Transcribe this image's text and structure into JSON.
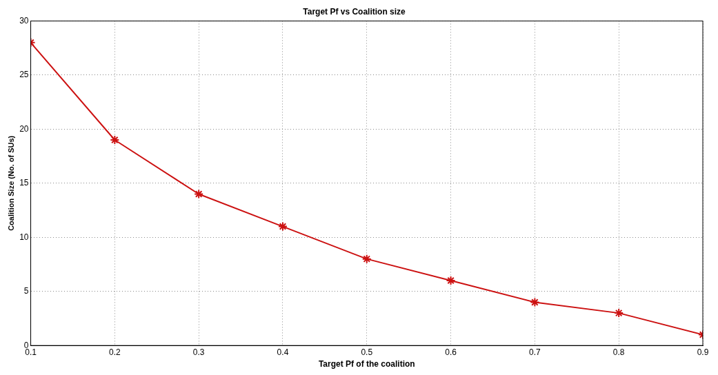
{
  "chart_data": {
    "type": "line",
    "title": "Target Pf vs Coalition size",
    "xlabel": "Target Pf of the coalition",
    "ylabel": "Coalition Size (No. of SUs)",
    "x": [
      0.1,
      0.2,
      0.3,
      0.4,
      0.5,
      0.6,
      0.7,
      0.8,
      0.9
    ],
    "series": [
      {
        "color": "#cc1111",
        "values": [
          28,
          19,
          14,
          11,
          8,
          6,
          4,
          3,
          1
        ]
      }
    ],
    "xlim": [
      0.1,
      0.9
    ],
    "xticks": [
      0.1,
      0.2,
      0.3,
      0.4,
      0.5,
      0.6,
      0.7,
      0.8,
      0.9
    ],
    "ylim": [
      0,
      30
    ],
    "yticks": [
      0,
      5,
      10,
      15,
      20,
      25,
      30
    ],
    "grid": true,
    "marker": "cross",
    "line_style": "solid"
  }
}
